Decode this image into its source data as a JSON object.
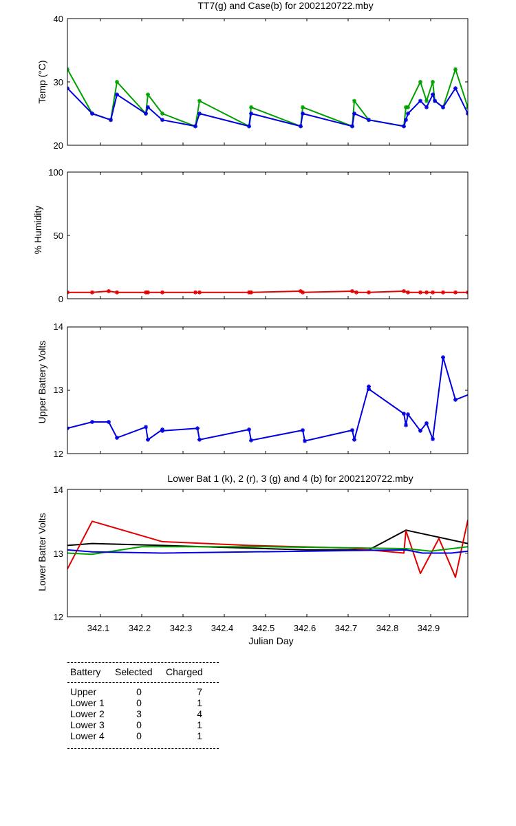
{
  "chart_data": [
    {
      "type": "line",
      "title": "TT7(g) and Case(b) for 2002120722.mby",
      "xlabel": "",
      "ylabel": "Temp  (°C)",
      "xlim": [
        342.02,
        342.99
      ],
      "ylim": [
        20,
        40
      ],
      "yticks": [
        "20",
        "30",
        "40"
      ],
      "xticks": [
        342.1,
        342.2,
        342.3,
        342.4,
        342.5,
        342.6,
        342.7,
        342.8,
        342.9
      ],
      "show_xticklabels": false,
      "series": [
        {
          "name": "TT7",
          "color": "#00a000",
          "x": [
            342.02,
            342.08,
            342.125,
            342.14,
            342.21,
            342.215,
            342.25,
            342.33,
            342.34,
            342.46,
            342.465,
            342.585,
            342.59,
            342.71,
            342.715,
            342.75,
            342.835,
            342.84,
            342.845,
            342.875,
            342.89,
            342.905,
            342.91,
            342.93,
            342.96,
            342.99,
            342.995
          ],
          "y": [
            32,
            25,
            24,
            30,
            25,
            28,
            25,
            23,
            27,
            23,
            26,
            23,
            26,
            23,
            27,
            24,
            23,
            26,
            26,
            30,
            27,
            30,
            27,
            26,
            32,
            26,
            25
          ]
        },
        {
          "name": "Case",
          "color": "#0000e0",
          "x": [
            342.02,
            342.08,
            342.125,
            342.14,
            342.21,
            342.215,
            342.25,
            342.33,
            342.34,
            342.46,
            342.465,
            342.585,
            342.59,
            342.71,
            342.715,
            342.75,
            342.835,
            342.84,
            342.845,
            342.875,
            342.89,
            342.905,
            342.91,
            342.93,
            342.96,
            342.99,
            342.995
          ],
          "y": [
            29,
            25,
            24,
            28,
            25,
            26,
            24,
            23,
            25,
            23,
            25,
            23,
            25,
            23,
            25,
            24,
            23,
            24,
            25,
            27,
            26,
            28,
            27,
            26,
            29,
            25,
            25
          ]
        }
      ]
    },
    {
      "type": "line",
      "title": "",
      "xlabel": "",
      "ylabel": "% Humidity",
      "xlim": [
        342.02,
        342.99
      ],
      "ylim": [
        0,
        100
      ],
      "yticks": [
        "0",
        "50",
        "100"
      ],
      "xticks": [
        342.1,
        342.2,
        342.3,
        342.4,
        342.5,
        342.6,
        342.7,
        342.8,
        342.9
      ],
      "show_xticklabels": false,
      "series": [
        {
          "name": "Humidity",
          "color": "#e00000",
          "x": [
            342.02,
            342.08,
            342.12,
            342.14,
            342.21,
            342.215,
            342.25,
            342.33,
            342.34,
            342.46,
            342.465,
            342.585,
            342.59,
            342.71,
            342.72,
            342.75,
            342.835,
            342.845,
            342.875,
            342.89,
            342.905,
            342.93,
            342.96,
            342.99
          ],
          "y": [
            5,
            5,
            6,
            5,
            5,
            5,
            5,
            5,
            5,
            5,
            5,
            6,
            5,
            6,
            5,
            5,
            6,
            5,
            5,
            5,
            5,
            5,
            5,
            5
          ]
        }
      ]
    },
    {
      "type": "line",
      "title": "",
      "xlabel": "",
      "ylabel": "Upper Battery Volts",
      "xlim": [
        342.02,
        342.99
      ],
      "ylim": [
        12,
        14
      ],
      "yticks": [
        "12",
        "13",
        "14"
      ],
      "xticks": [
        342.1,
        342.2,
        342.3,
        342.4,
        342.5,
        342.6,
        342.7,
        342.8,
        342.9
      ],
      "show_xticklabels": false,
      "series": [
        {
          "name": "Upper",
          "color": "#0000e0",
          "x": [
            342.02,
            342.08,
            342.12,
            342.14,
            342.21,
            342.215,
            342.25,
            342.25,
            342.335,
            342.34,
            342.46,
            342.465,
            342.59,
            342.595,
            342.71,
            342.715,
            342.75,
            342.75,
            342.835,
            342.84,
            342.845,
            342.875,
            342.89,
            342.905,
            342.93,
            342.96,
            342.995
          ],
          "y": [
            12.4,
            12.5,
            12.5,
            12.25,
            12.42,
            12.22,
            12.38,
            12.36,
            12.4,
            12.22,
            12.38,
            12.21,
            12.37,
            12.2,
            12.37,
            12.22,
            13.06,
            13.02,
            12.63,
            12.45,
            12.62,
            12.36,
            12.48,
            12.23,
            13.52,
            12.85,
            12.94
          ]
        }
      ]
    },
    {
      "type": "line",
      "title": "Lower Bat 1 (k), 2 (r), 3 (g) and 4 (b) for 2002120722.mby",
      "xlabel": "Julian Day",
      "ylabel": "Lower Batter Volts",
      "xlim": [
        342.02,
        342.99
      ],
      "ylim": [
        12,
        14
      ],
      "yticks": [
        "12",
        "13",
        "14"
      ],
      "xticks": [
        342.1,
        342.2,
        342.3,
        342.4,
        342.5,
        342.6,
        342.7,
        342.8,
        342.9
      ],
      "xticklabels": [
        "342.1",
        "342.2",
        "342.3",
        "342.4",
        "342.5",
        "342.6",
        "342.7",
        "342.8",
        "342.9"
      ],
      "show_xticklabels": true,
      "series": [
        {
          "name": "Lower 1",
          "color": "#000000",
          "x": [
            342.02,
            342.08,
            342.25,
            342.6,
            342.75,
            342.84,
            342.99
          ],
          "y": [
            13.12,
            13.15,
            13.12,
            13.05,
            13.05,
            13.36,
            13.15
          ]
        },
        {
          "name": "Lower 2",
          "color": "#e00000",
          "x": [
            342.02,
            342.08,
            342.25,
            342.46,
            342.7,
            342.835,
            342.84,
            342.875,
            342.92,
            342.96,
            342.99
          ],
          "y": [
            12.75,
            13.5,
            13.18,
            13.12,
            13.08,
            13.0,
            13.35,
            12.68,
            13.23,
            12.62,
            13.52
          ]
        },
        {
          "name": "Lower 3",
          "color": "#00a000",
          "x": [
            342.02,
            342.08,
            342.2,
            342.5,
            342.84,
            342.9,
            342.99
          ],
          "y": [
            13.0,
            12.98,
            13.1,
            13.1,
            13.07,
            13.03,
            13.1
          ]
        },
        {
          "name": "Lower 4",
          "color": "#0000e0",
          "x": [
            342.02,
            342.08,
            342.25,
            342.6,
            342.84,
            342.88,
            342.95,
            342.99
          ],
          "y": [
            13.05,
            13.02,
            13.0,
            13.03,
            13.05,
            13.0,
            13.0,
            13.03
          ]
        }
      ]
    }
  ],
  "table": {
    "headers": [
      "Battery",
      "Selected",
      "Charged"
    ],
    "rows": [
      [
        "Upper",
        "0",
        "7"
      ],
      [
        "Lower 1",
        "0",
        "1"
      ],
      [
        "Lower 2",
        "3",
        "4"
      ],
      [
        "Lower 3",
        "0",
        "1"
      ],
      [
        "Lower 4",
        "0",
        "1"
      ]
    ]
  }
}
